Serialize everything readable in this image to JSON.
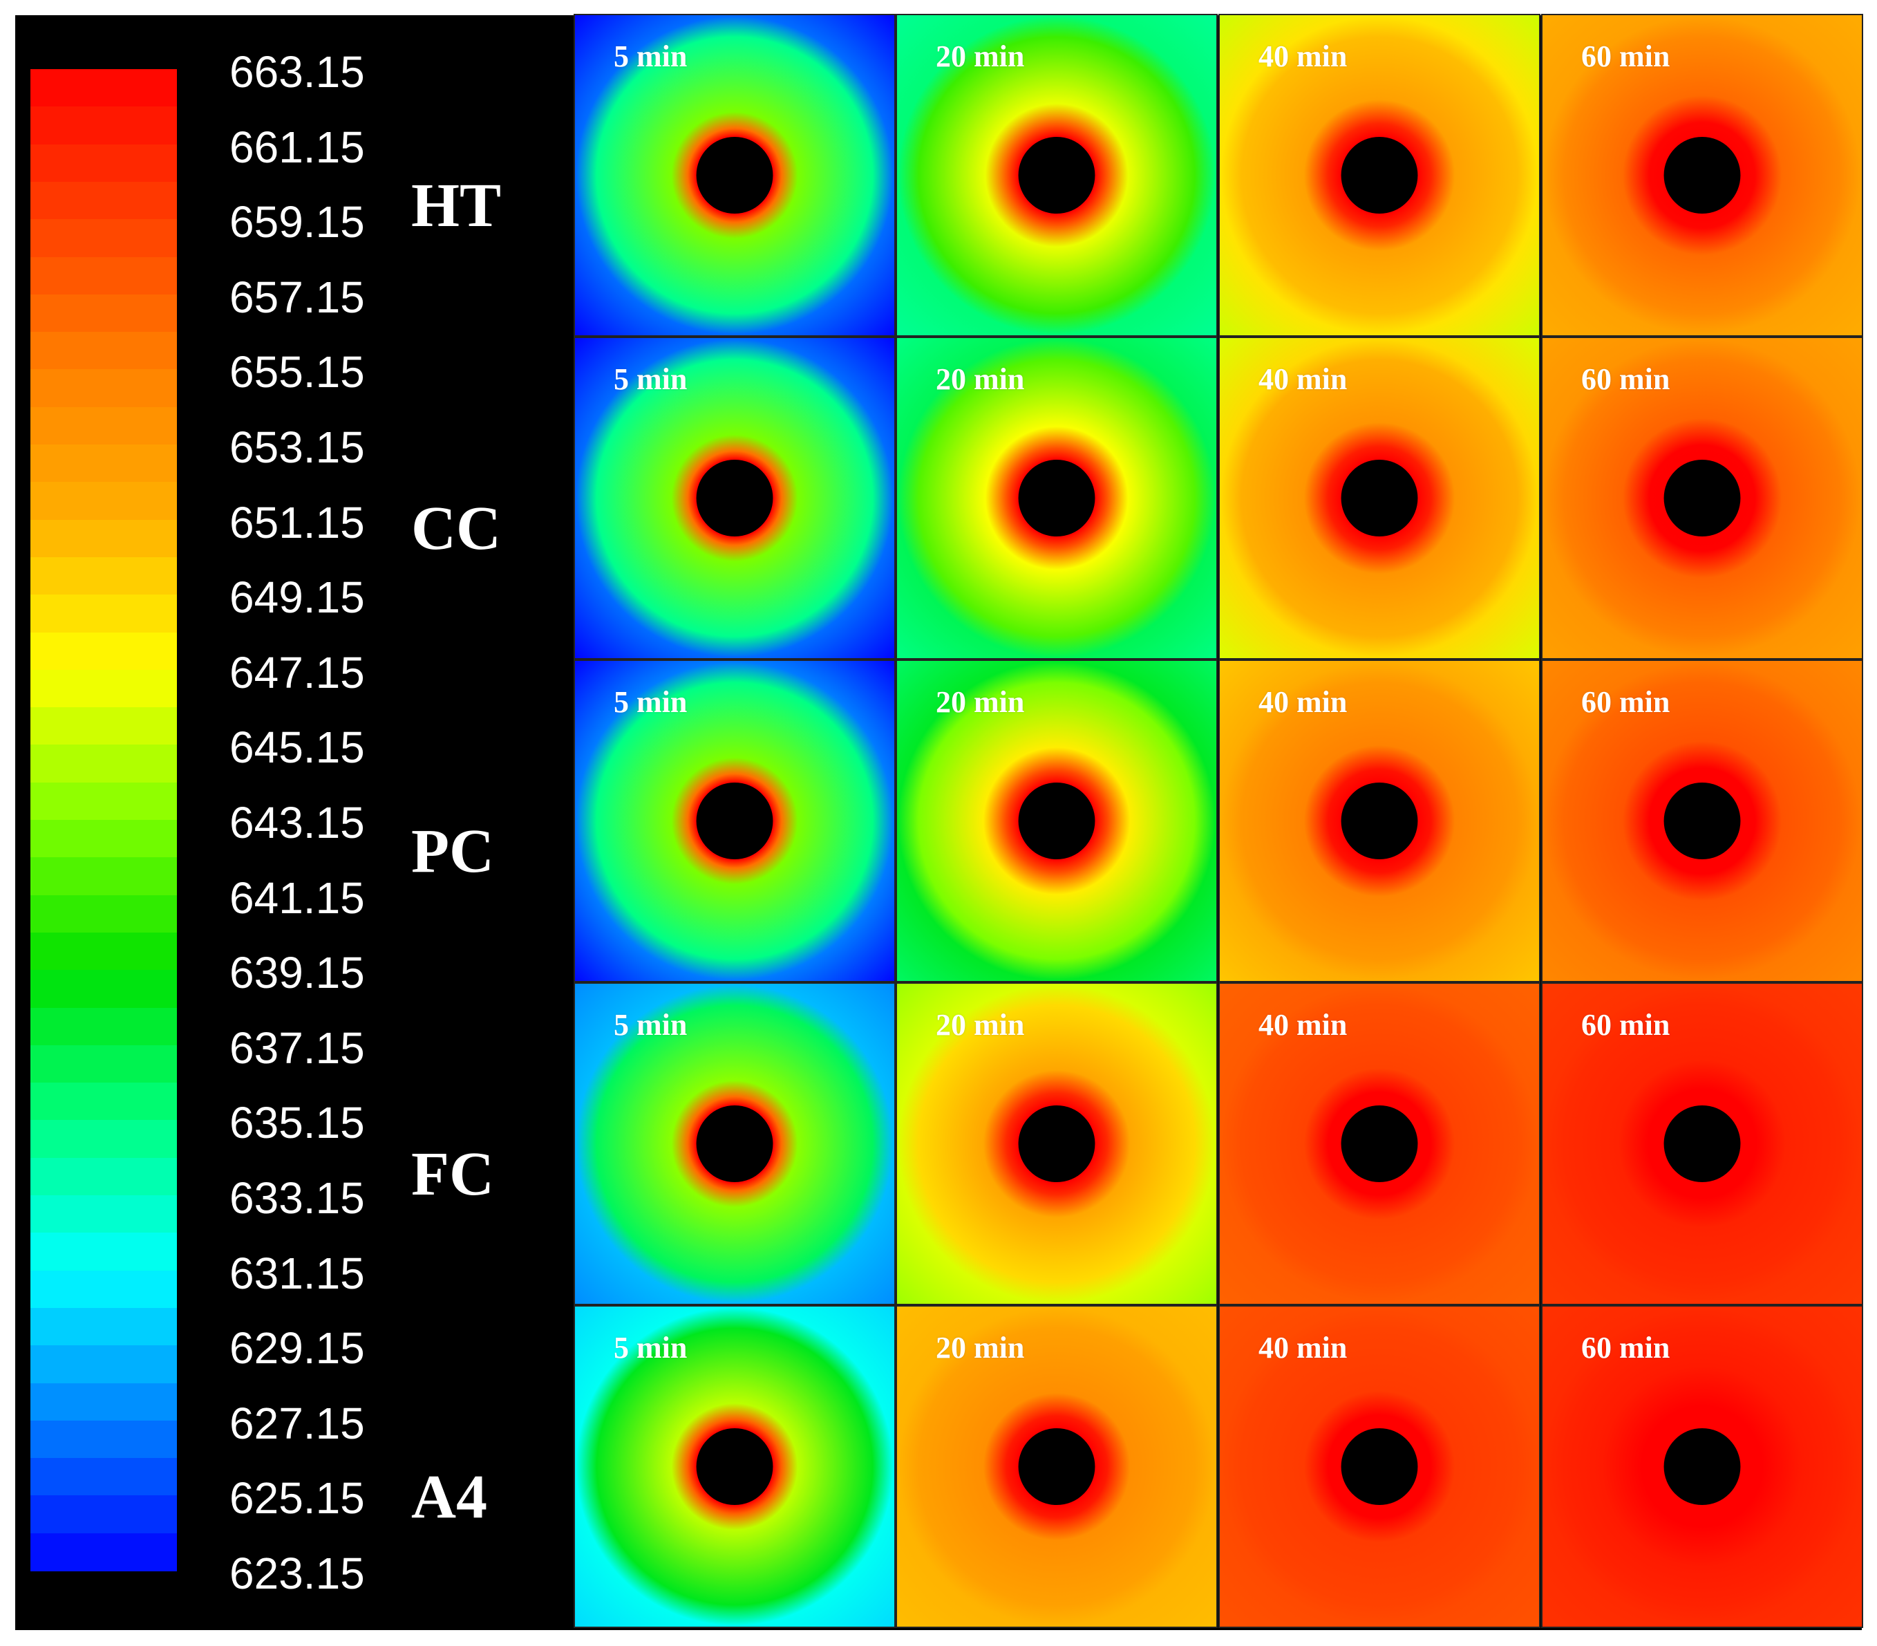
{
  "chart_data": {
    "type": "heatmap",
    "title": "",
    "colorbar": {
      "min": 623.15,
      "max": 663.15,
      "step": 2,
      "tick_labels": [
        "663.15",
        "661.15",
        "659.15",
        "657.15",
        "655.15",
        "653.15",
        "651.15",
        "649.15",
        "647.15",
        "645.15",
        "643.15",
        "641.15",
        "639.15",
        "637.15",
        "635.15",
        "633.15",
        "631.15",
        "629.15",
        "627.15",
        "625.15",
        "623.15"
      ],
      "colormap": [
        "#0000ff",
        "#0080ff",
        "#00ffff",
        "#00ff80",
        "#00e000",
        "#80ff00",
        "#ffff00",
        "#ffb000",
        "#ff8000",
        "#ff4000",
        "#ff0000"
      ]
    },
    "rows": [
      "HT",
      "CC",
      "PC",
      "FC",
      "A4"
    ],
    "columns": [
      "5 min",
      "20 min",
      "40 min",
      "60 min"
    ],
    "panels": [
      [
        {
          "time": "5 min",
          "hot_ring_temp": 663.15,
          "ring_width": 0.12,
          "mid_temp": 643.0,
          "edge_temp": 626.5,
          "corner_temp": 623.15
        },
        {
          "time": "20 min",
          "hot_ring_temp": 663.15,
          "ring_width": 0.16,
          "mid_temp": 646.5,
          "edge_temp": 635.5,
          "corner_temp": 634.5
        },
        {
          "time": "40 min",
          "hot_ring_temp": 663.15,
          "ring_width": 0.18,
          "mid_temp": 652.5,
          "edge_temp": 648.5,
          "corner_temp": 645.5
        },
        {
          "time": "60 min",
          "hot_ring_temp": 663.15,
          "ring_width": 0.2,
          "mid_temp": 656.5,
          "edge_temp": 652.5,
          "corner_temp": 651.5
        }
      ],
      [
        {
          "time": "5 min",
          "hot_ring_temp": 663.15,
          "ring_width": 0.12,
          "mid_temp": 643.0,
          "edge_temp": 626.5,
          "corner_temp": 623.15
        },
        {
          "time": "20 min",
          "hot_ring_temp": 663.15,
          "ring_width": 0.16,
          "mid_temp": 647.0,
          "edge_temp": 636.5,
          "corner_temp": 635.0
        },
        {
          "time": "40 min",
          "hot_ring_temp": 663.15,
          "ring_width": 0.18,
          "mid_temp": 653.5,
          "edge_temp": 649.0,
          "corner_temp": 646.0
        },
        {
          "time": "60 min",
          "hot_ring_temp": 663.15,
          "ring_width": 0.2,
          "mid_temp": 657.0,
          "edge_temp": 653.5,
          "corner_temp": 652.5
        }
      ],
      [
        {
          "time": "5 min",
          "hot_ring_temp": 663.15,
          "ring_width": 0.12,
          "mid_temp": 643.0,
          "edge_temp": 627.0,
          "corner_temp": 623.15
        },
        {
          "time": "20 min",
          "hot_ring_temp": 663.15,
          "ring_width": 0.17,
          "mid_temp": 648.0,
          "edge_temp": 638.0,
          "corner_temp": 636.0
        },
        {
          "time": "40 min",
          "hot_ring_temp": 663.15,
          "ring_width": 0.18,
          "mid_temp": 655.0,
          "edge_temp": 651.5,
          "corner_temp": 650.0
        },
        {
          "time": "60 min",
          "hot_ring_temp": 663.15,
          "ring_width": 0.2,
          "mid_temp": 658.0,
          "edge_temp": 655.5,
          "corner_temp": 654.5
        }
      ],
      [
        {
          "time": "5 min",
          "hot_ring_temp": 663.15,
          "ring_width": 0.12,
          "mid_temp": 643.5,
          "edge_temp": 629.0,
          "corner_temp": 627.5
        },
        {
          "time": "20 min",
          "hot_ring_temp": 663.15,
          "ring_width": 0.17,
          "mid_temp": 652.0,
          "edge_temp": 646.0,
          "corner_temp": 644.0
        },
        {
          "time": "40 min",
          "hot_ring_temp": 663.15,
          "ring_width": 0.18,
          "mid_temp": 659.0,
          "edge_temp": 657.5,
          "corner_temp": 657.0
        },
        {
          "time": "60 min",
          "hot_ring_temp": 663.15,
          "ring_width": 0.22,
          "mid_temp": 661.0,
          "edge_temp": 660.0,
          "corner_temp": 659.5
        }
      ],
      [
        {
          "time": "5 min",
          "hot_ring_temp": 663.15,
          "ring_width": 0.12,
          "mid_temp": 645.0,
          "edge_temp": 631.5,
          "corner_temp": 630.0
        },
        {
          "time": "20 min",
          "hot_ring_temp": 663.15,
          "ring_width": 0.17,
          "mid_temp": 654.0,
          "edge_temp": 651.0,
          "corner_temp": 650.5
        },
        {
          "time": "40 min",
          "hot_ring_temp": 663.15,
          "ring_width": 0.18,
          "mid_temp": 659.5,
          "edge_temp": 658.5,
          "corner_temp": 658.0
        },
        {
          "time": "60 min",
          "hot_ring_temp": 663.15,
          "ring_width": 0.3,
          "mid_temp": 661.5,
          "edge_temp": 660.5,
          "corner_temp": 660.0
        }
      ]
    ]
  }
}
